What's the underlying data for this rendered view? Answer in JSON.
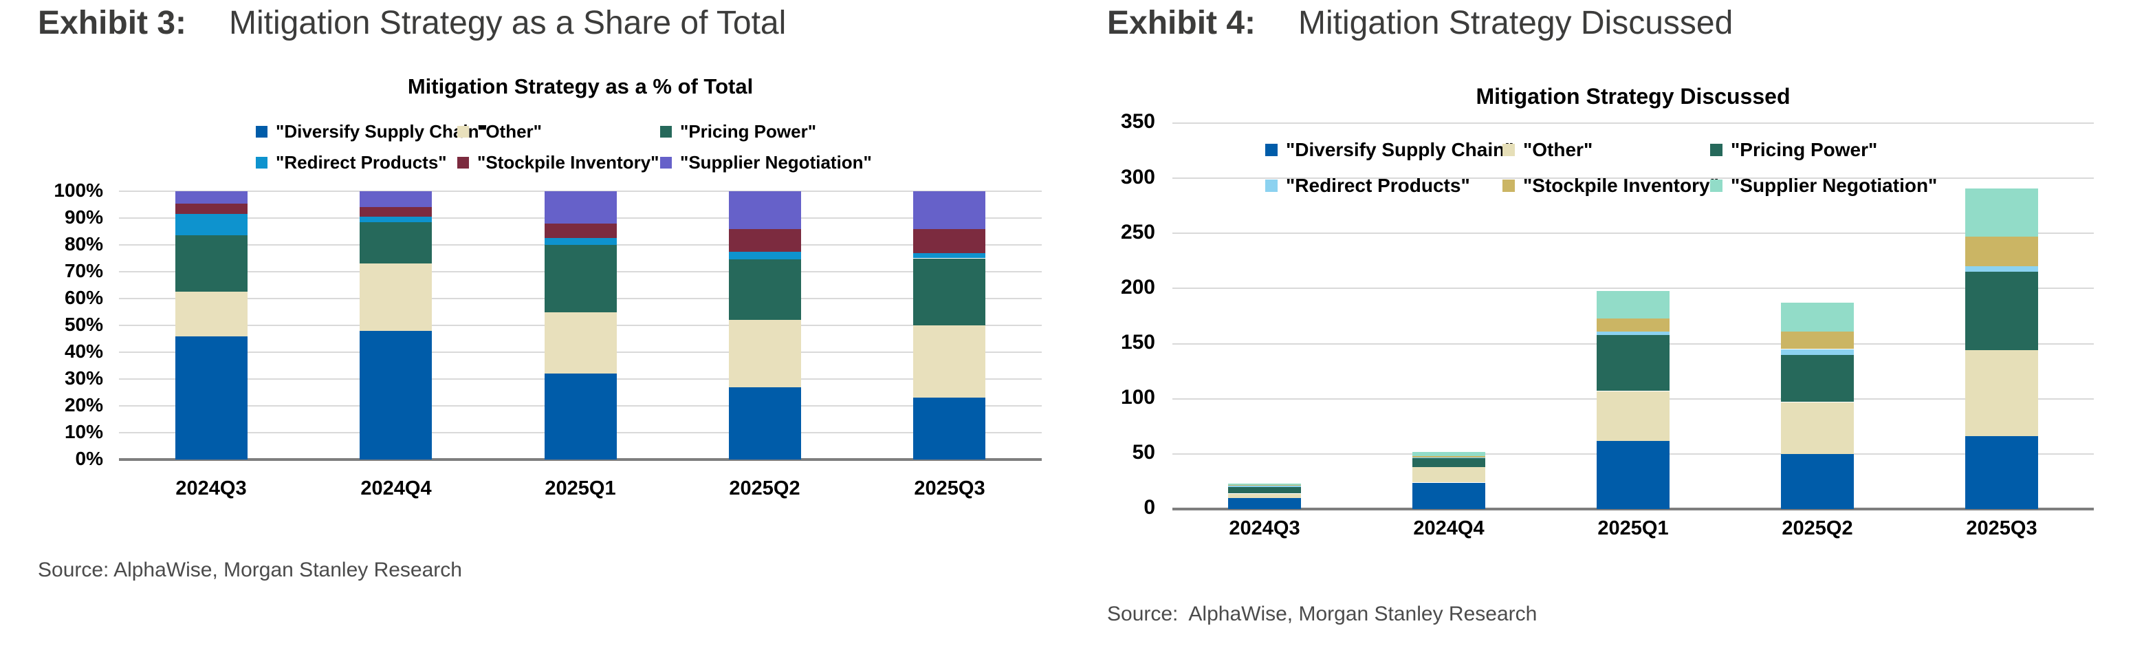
{
  "page": {
    "background": "#FFFFFF"
  },
  "colors": {
    "grid": "#D9D9D9",
    "axis_baseline": "#7E7E7E",
    "heading_text": "#3C3C3B",
    "source_text": "#4B4B4B",
    "chart_text": "#000000"
  },
  "exhibits": [
    {
      "heading_label": "Exhibit 3:",
      "heading_title": "Mitigation Strategy as a Share of Total",
      "source": "Source: AlphaWise, Morgan Stanley Research"
    },
    {
      "heading_label": "Exhibit 4:",
      "heading_title": "Mitigation Strategy Discussed",
      "source": "Source:  AlphaWise, Morgan Stanley Research"
    }
  ],
  "chart_data": [
    {
      "type": "bar",
      "stacked": true,
      "units": "percent_of_total",
      "title": "Mitigation Strategy as a % of Total",
      "categories": [
        "2024Q3",
        "2024Q4",
        "2025Q1",
        "2025Q2",
        "2025Q3"
      ],
      "series": [
        {
          "name": "\"Diversify Supply Chain\"",
          "color": "#005CA9",
          "values": [
            46,
            48,
            32,
            27,
            23
          ]
        },
        {
          "name": "\"Other\"",
          "color": "#E8E0BC",
          "values": [
            16.5,
            25,
            23,
            25,
            27
          ]
        },
        {
          "name": "\"Pricing Power\"",
          "color": "#26695B",
          "values": [
            21,
            15.5,
            25,
            22.5,
            25
          ]
        },
        {
          "name": "\"Redirect Products\"",
          "color": "#0E93CE",
          "values": [
            8,
            2,
            2.5,
            3,
            2
          ]
        },
        {
          "name": "\"Stockpile Inventory\"",
          "color": "#7C2B3F",
          "values": [
            4,
            3.5,
            5.5,
            8.5,
            9
          ]
        },
        {
          "name": "\"Supplier Negotiation\"",
          "color": "#6661C9",
          "values": [
            4.5,
            6,
            12,
            14,
            14
          ]
        }
      ],
      "ylim": [
        0,
        100
      ],
      "yticks": [
        "0%",
        "10%",
        "20%",
        "30%",
        "40%",
        "50%",
        "60%",
        "70%",
        "80%",
        "90%",
        "100%"
      ],
      "grid": true,
      "legend_position": "top",
      "legend_rows": [
        [
          0,
          1,
          2
        ],
        [
          3,
          4,
          5
        ]
      ]
    },
    {
      "type": "bar",
      "stacked": true,
      "units": "count",
      "title": "Mitigation Strategy Discussed",
      "categories": [
        "2024Q3",
        "2024Q4",
        "2025Q1",
        "2025Q2",
        "2025Q3"
      ],
      "series": [
        {
          "name": "\"Diversify Supply Chain\"",
          "color": "#005CA9",
          "values": [
            10,
            24,
            62,
            50,
            66
          ]
        },
        {
          "name": "\"Other\"",
          "color": "#E6DFB8",
          "values": [
            4,
            14,
            45,
            47,
            78
          ]
        },
        {
          "name": "\"Pricing Power\"",
          "color": "#26695B",
          "values": [
            6,
            8,
            51,
            43,
            71
          ]
        },
        {
          "name": "\"Redirect Products\"",
          "color": "#8CD2F0",
          "values": [
            1,
            1,
            3,
            5,
            5
          ]
        },
        {
          "name": "\"Stockpile Inventory\"",
          "color": "#CBB564",
          "values": [
            1,
            1,
            12,
            16,
            27
          ]
        },
        {
          "name": "\"Supplier Negotiation\"",
          "color": "#92DCC8",
          "values": [
            1,
            4,
            25,
            26,
            44
          ]
        }
      ],
      "totals": [
        23,
        52,
        198,
        187,
        291
      ],
      "ylim": [
        0,
        350
      ],
      "yticks": [
        "0",
        "50",
        "100",
        "150",
        "200",
        "250",
        "300",
        "350"
      ],
      "grid": true,
      "legend_position": "inset-top",
      "legend_rows": [
        [
          0,
          1,
          2
        ],
        [
          3,
          4,
          5
        ]
      ]
    }
  ]
}
